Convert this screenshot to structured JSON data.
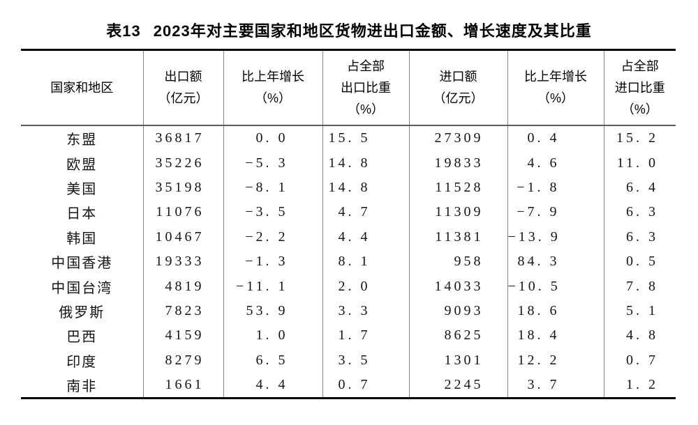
{
  "title": {
    "label": "表13",
    "text": "2023年对主要国家和地区货物进出口金额、增长速度及其比重"
  },
  "table": {
    "columns": [
      {
        "id": "region",
        "lines": [
          "国家和地区"
        ]
      },
      {
        "id": "export-value",
        "lines": [
          "出口额",
          "（亿元）"
        ]
      },
      {
        "id": "export-growth",
        "lines": [
          "比上年增长",
          "（%）"
        ]
      },
      {
        "id": "export-share",
        "lines": [
          "占全部",
          "出口比重",
          "（%）"
        ]
      },
      {
        "id": "import-value",
        "lines": [
          "进口额",
          "（亿元）"
        ]
      },
      {
        "id": "import-growth",
        "lines": [
          "比上年增长",
          "（%）"
        ]
      },
      {
        "id": "import-share",
        "lines": [
          "占全部",
          "进口比重",
          "（%）"
        ]
      }
    ],
    "rows": [
      {
        "cells": [
          "东盟",
          "36817",
          "0. 0",
          "15. 5",
          "27309",
          "0. 4",
          "15. 2"
        ]
      },
      {
        "cells": [
          "欧盟",
          "35226",
          "−5. 3",
          "14. 8",
          "19833",
          "4. 6",
          "11. 0"
        ]
      },
      {
        "cells": [
          "美国",
          "35198",
          "−8. 1",
          "14. 8",
          "11528",
          "−1. 8",
          "6. 4"
        ]
      },
      {
        "cells": [
          "日本",
          "11076",
          "−3. 5",
          "4. 7",
          "11309",
          "−7. 9",
          "6. 3"
        ]
      },
      {
        "cells": [
          "韩国",
          "10467",
          "−2. 2",
          "4. 4",
          "11381",
          "−13. 9",
          "6. 3"
        ]
      },
      {
        "cells": [
          "中国香港",
          "19333",
          "−1. 3",
          "8. 1",
          "958",
          "84. 3",
          "0. 5"
        ]
      },
      {
        "cells": [
          "中国台湾",
          "4819",
          "−11. 1",
          "2. 0",
          "14033",
          "−10. 5",
          "7. 8"
        ]
      },
      {
        "cells": [
          "俄罗斯",
          "7823",
          "53. 9",
          "3. 3",
          "9093",
          "18. 6",
          "5. 1"
        ]
      },
      {
        "cells": [
          "巴西",
          "4159",
          "1. 0",
          "1. 7",
          "8625",
          "18. 4",
          "4. 8"
        ]
      },
      {
        "cells": [
          "印度",
          "8279",
          "6. 5",
          "3. 5",
          "1301",
          "12. 2",
          "0. 7"
        ]
      },
      {
        "cells": [
          "南非",
          "1661",
          "4. 4",
          "0. 7",
          "2245",
          "3. 7",
          "1. 2"
        ]
      }
    ],
    "border_colors": {
      "outer_rule": "#000000",
      "inner_rule": "#848484"
    }
  }
}
